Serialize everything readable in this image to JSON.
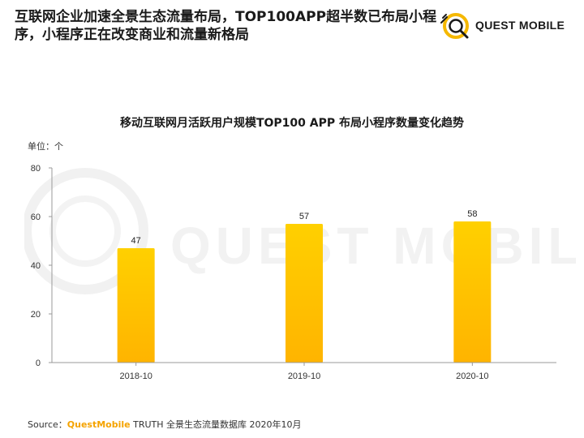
{
  "headline": "互联网企业加速全景生态流量布局，TOP100APP超半数已布局小程序，小程序正在改变商业和流量新格局",
  "logo": {
    "text": "QUEST MOBILE",
    "icon": "quest-mobile-logo-icon"
  },
  "watermark": {
    "text": "QUEST MOBILE"
  },
  "colors": {
    "bar_top": "#ffd000",
    "bar_bottom": "#ffb400",
    "accent": "#f5a300"
  },
  "source": {
    "prefix": "Source：",
    "brand": "QuestMobile",
    "suffix": " TRUTH 全景生态流量数据库 2020年10月"
  },
  "chart_data": {
    "type": "bar",
    "title": "移动互联网月活跃用户规模TOP100 APP 布局小程序数量变化趋势",
    "unit": "单位：个",
    "xlabel": "",
    "ylabel": "",
    "categories": [
      "2018-10",
      "2019-10",
      "2020-10"
    ],
    "values": [
      47,
      57,
      58
    ],
    "ylim": [
      0,
      80
    ],
    "yticks": [
      0,
      20,
      40,
      60,
      80
    ],
    "grid": false,
    "legend": "none"
  }
}
